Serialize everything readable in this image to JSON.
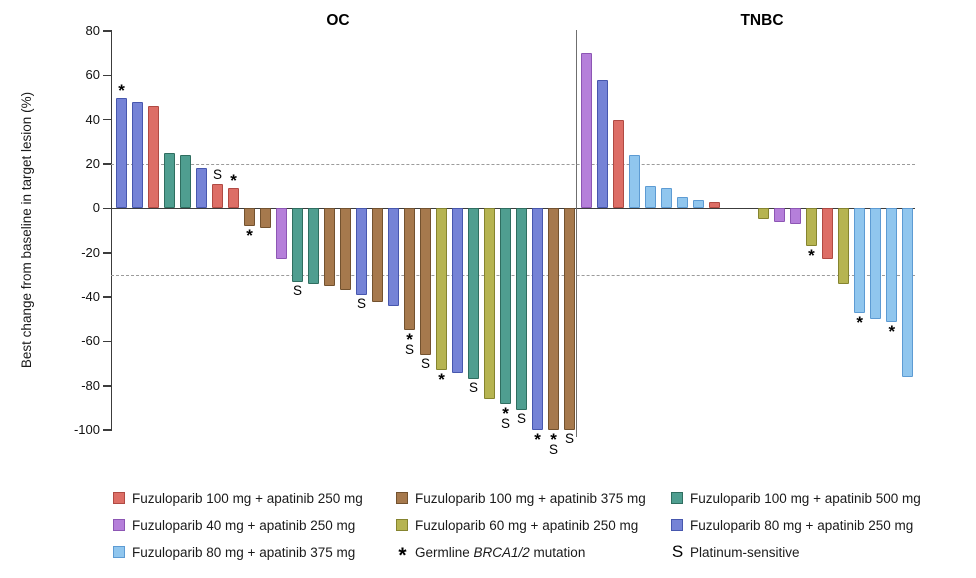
{
  "chart_data": {
    "type": "bar",
    "subtype": "waterfall",
    "ylabel": "Best change from baseline in target lesion (%)",
    "ylim": [
      -100,
      80
    ],
    "yticks": [
      80,
      60,
      40,
      20,
      0,
      -20,
      -40,
      -60,
      -80,
      -100
    ],
    "reference_lines": [
      20,
      -30
    ],
    "grid": "off",
    "legend_position": "bottom",
    "colors": {
      "red": {
        "fill": "#dd6e66",
        "stroke": "#b04a43",
        "label": "Fuzuloparib 100 mg + apatinib 250 mg"
      },
      "brown": {
        "fill": "#a6794d",
        "stroke": "#73522f",
        "label": "Fuzuloparib 100 mg + apatinib 375 mg"
      },
      "teal": {
        "fill": "#4f9e90",
        "stroke": "#2f6e60",
        "label": "Fuzuloparib 100 mg + apatinib 500 mg"
      },
      "purple": {
        "fill": "#b57fda",
        "stroke": "#8d56b4",
        "label": "Fuzuloparib 40 mg + apatinib 250 mg"
      },
      "yellow": {
        "fill": "#b6b451",
        "stroke": "#85842f",
        "label": "Fuzuloparib 60 mg + apatinib 250 mg"
      },
      "blueviolet": {
        "fill": "#7583d6",
        "stroke": "#4757ae",
        "label": "Fuzuloparib 80 mg + apatinib 250 mg"
      },
      "lightblue": {
        "fill": "#90c6ee",
        "stroke": "#5d9bd3",
        "label": "Fuzuloparib 80 mg + apatinib 375 mg"
      }
    },
    "marks_meaning": {
      "*": "Germline BRCA1/2 mutation",
      "S": "Platinum-sensitive"
    },
    "panels": [
      {
        "title": "OC",
        "bars": [
          {
            "v": 50,
            "c": "blueviolet",
            "m": "*"
          },
          {
            "v": 48,
            "c": "blueviolet"
          },
          {
            "v": 46,
            "c": "red"
          },
          {
            "v": 25,
            "c": "teal"
          },
          {
            "v": 24,
            "c": "teal"
          },
          {
            "v": 18,
            "c": "blueviolet"
          },
          {
            "v": 11,
            "c": "red",
            "m": "S"
          },
          {
            "v": 9,
            "c": "red",
            "m": "*"
          },
          {
            "v": -8,
            "c": "brown",
            "m": "*"
          },
          {
            "v": -9,
            "c": "brown"
          },
          {
            "v": -23,
            "c": "purple"
          },
          {
            "v": -33,
            "c": "teal",
            "m": "S"
          },
          {
            "v": -34,
            "c": "teal"
          },
          {
            "v": -35,
            "c": "brown"
          },
          {
            "v": -37,
            "c": "brown"
          },
          {
            "v": -39,
            "c": "blueviolet",
            "m": "S"
          },
          {
            "v": -42,
            "c": "brown"
          },
          {
            "v": -44,
            "c": "blueviolet"
          },
          {
            "v": -55,
            "c": "brown",
            "m": "*S"
          },
          {
            "v": -66,
            "c": "brown",
            "m": "S"
          },
          {
            "v": -73,
            "c": "yellow",
            "m": "*"
          },
          {
            "v": -74,
            "c": "blueviolet"
          },
          {
            "v": -77,
            "c": "teal",
            "m": "S"
          },
          {
            "v": -86,
            "c": "yellow"
          },
          {
            "v": -88,
            "c": "teal",
            "m": "*S"
          },
          {
            "v": -91,
            "c": "teal",
            "m": "S"
          },
          {
            "v": -100,
            "c": "blueviolet",
            "m": "*"
          },
          {
            "v": -100,
            "c": "brown",
            "m": "*S"
          },
          {
            "v": -100,
            "c": "brown",
            "m": "S"
          }
        ]
      },
      {
        "title": "TNBC",
        "bars": [
          {
            "v": 70,
            "c": "purple"
          },
          {
            "v": 58,
            "c": "blueviolet"
          },
          {
            "v": 40,
            "c": "red"
          },
          {
            "v": 24,
            "c": "lightblue"
          },
          {
            "v": 10,
            "c": "lightblue"
          },
          {
            "v": 9,
            "c": "lightblue"
          },
          {
            "v": 5,
            "c": "lightblue"
          },
          {
            "v": 4,
            "c": "lightblue"
          },
          {
            "v": 3,
            "c": "red"
          },
          {
            "v": 0,
            "c": ""
          },
          {
            "v": 0,
            "c": ""
          },
          {
            "v": -5,
            "c": "yellow"
          },
          {
            "v": -6,
            "c": "purple"
          },
          {
            "v": -7,
            "c": "purple"
          },
          {
            "v": -17,
            "c": "yellow",
            "m": "*"
          },
          {
            "v": -23,
            "c": "red"
          },
          {
            "v": -34,
            "c": "yellow"
          },
          {
            "v": -47,
            "c": "lightblue",
            "m": "*"
          },
          {
            "v": -50,
            "c": "lightblue"
          },
          {
            "v": -51,
            "c": "lightblue",
            "m": "*"
          },
          {
            "v": -76,
            "c": "lightblue"
          }
        ]
      }
    ],
    "legend": {
      "columns": [
        [
          {
            "color": "red"
          },
          {
            "color": "purple"
          },
          {
            "color": "lightblue"
          }
        ],
        [
          {
            "color": "brown"
          },
          {
            "color": "yellow"
          },
          {
            "symbol": "*",
            "label_parts": {
              "pre": "Germline ",
              "italic": "BRCA1/2",
              "post": " mutation"
            }
          }
        ],
        [
          {
            "color": "teal"
          },
          {
            "color": "blueviolet"
          },
          {
            "symbol": "S",
            "label": "Platinum-sensitive"
          }
        ]
      ]
    }
  }
}
